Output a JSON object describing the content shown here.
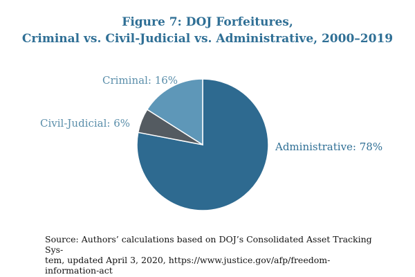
{
  "figure": {
    "title_line1": "Figure 7: DOJ Forfeitures,",
    "title_line2": "Criminal vs. Civil-Judicial vs. Administrative, 2000–2019",
    "source_line1": "Source: Authors’ calculations based on DOJ’s Consolidated Asset Tracking Sys-",
    "source_line2": "tem, updated April 3, 2020, https://www.justice.gov/afp/freedom-",
    "source_line3": "information-act"
  },
  "colors": {
    "title": "#2f6f95",
    "administrative": "#2e6a90",
    "civil_judicial": "#545b61",
    "criminal": "#5e97b8",
    "label_administrative": "#2f6f95",
    "label_other": "#5a8eaa"
  },
  "chart_data": {
    "type": "pie",
    "title": "Figure 7: DOJ Forfeitures, Criminal vs. Civil-Judicial vs. Administrative, 2000–2019",
    "slices": [
      {
        "name": "Administrative",
        "value": 78,
        "label": "Administrative: 78%"
      },
      {
        "name": "Civil-Judicial",
        "value": 6,
        "label": "Civil-Judicial: 6%"
      },
      {
        "name": "Criminal",
        "value": 16,
        "label": "Criminal: 16%"
      }
    ]
  }
}
